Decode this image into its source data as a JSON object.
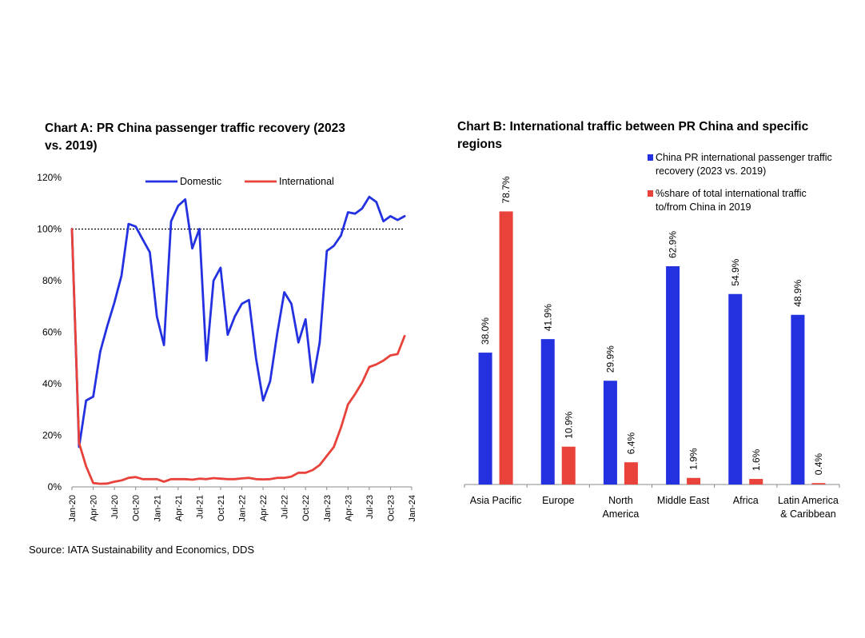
{
  "chart_a_title": "Chart A: PR China passenger traffic recovery (2023 vs. 2019)",
  "chart_b_title": "Chart B: International traffic between PR China and specific regions",
  "source": "Source: IATA Sustainability and Economics, DDS",
  "colors": {
    "blue": "#2431E0",
    "red": "#E8423A"
  },
  "chart_data": [
    {
      "type": "line",
      "title": "Chart A: PR China passenger traffic recovery (2023 vs. 2019)",
      "x": [
        "Jan-20",
        "Feb-20",
        "Mar-20",
        "Apr-20",
        "May-20",
        "Jun-20",
        "Jul-20",
        "Aug-20",
        "Sep-20",
        "Oct-20",
        "Nov-20",
        "Dec-20",
        "Jan-21",
        "Feb-21",
        "Mar-21",
        "Apr-21",
        "May-21",
        "Jun-21",
        "Jul-21",
        "Aug-21",
        "Sep-21",
        "Oct-21",
        "Nov-21",
        "Dec-21",
        "Jan-22",
        "Feb-22",
        "Mar-22",
        "Apr-22",
        "May-22",
        "Jun-22",
        "Jul-22",
        "Aug-22",
        "Sep-22",
        "Oct-22",
        "Nov-22",
        "Dec-22",
        "Jan-23",
        "Feb-23",
        "Mar-23",
        "Apr-23",
        "May-23",
        "Jun-23",
        "Jul-23",
        "Aug-23",
        "Sep-23",
        "Oct-23",
        "Nov-23",
        "Dec-23"
      ],
      "x_tick_labels": [
        "Jan-20",
        "Apr-20",
        "Jul-20",
        "Oct-20",
        "Jan-21",
        "Apr-21",
        "Jul-21",
        "Oct-21",
        "Jan-22",
        "Apr-22",
        "Jul-22",
        "Oct-22",
        "Jan-23",
        "Apr-23",
        "Jul-23",
        "Oct-23",
        "Jan-24"
      ],
      "y_tick_labels": [
        "0%",
        "20%",
        "40%",
        "60%",
        "80%",
        "100%",
        "120%"
      ],
      "ylim": [
        0,
        120
      ],
      "reference_line": 100,
      "legend_position": "top",
      "series": [
        {
          "name": "Domestic",
          "color": "#2431E0",
          "values": [
            100,
            15.5,
            33.5,
            35,
            52.5,
            62.5,
            71.5,
            82,
            102,
            101,
            96,
            91,
            66,
            55,
            103,
            109,
            111.5,
            92.5,
            100,
            49,
            80,
            85,
            59,
            66,
            71,
            72.5,
            50,
            33.5,
            41,
            59.5,
            75.5,
            71,
            56,
            65,
            40.5,
            56,
            91.5,
            93.5,
            97.5,
            106.5,
            106,
            108,
            112.5,
            110.5,
            103,
            105,
            103.5,
            105
          ]
        },
        {
          "name": "International",
          "color": "#E8423A",
          "values": [
            100,
            17,
            8,
            1.5,
            1.2,
            1.3,
            2,
            2.5,
            3.5,
            3.8,
            3,
            3,
            3,
            2,
            3,
            3,
            3,
            2.8,
            3.2,
            3,
            3.4,
            3.2,
            3,
            3,
            3.3,
            3.5,
            3,
            2.9,
            3,
            3.5,
            3.5,
            4,
            5.5,
            5.5,
            6.5,
            8.5,
            12,
            15.5,
            23,
            32,
            36,
            40.5,
            46.5,
            47.5,
            49,
            51,
            51.5,
            58.5
          ]
        }
      ]
    },
    {
      "type": "bar",
      "title": "Chart B: International traffic between PR China and specific regions",
      "categories": [
        "Asia Pacific",
        "Europe",
        "North America",
        "Middle East",
        "Africa",
        "Latin America & Caribbean"
      ],
      "category_lines": [
        [
          "Asia Pacific"
        ],
        [
          "Europe"
        ],
        [
          "North",
          "America"
        ],
        [
          "Middle East"
        ],
        [
          "Africa"
        ],
        [
          "Latin America",
          "& Caribbean"
        ]
      ],
      "ylim": [
        0,
        100
      ],
      "legend_position": "top-right",
      "series": [
        {
          "name": "China PR international passenger traffic recovery (2023 vs. 2019)",
          "name_lines": [
            "China PR international passenger traffic",
            "recovery (2023 vs. 2019)"
          ],
          "color": "#2431E0",
          "values": [
            38.0,
            41.9,
            29.9,
            62.9,
            54.9,
            48.9
          ],
          "labels": [
            "38.0%",
            "41.9%",
            "29.9%",
            "62.9%",
            "54.9%",
            "48.9%"
          ]
        },
        {
          "name": "%share of total international traffic to/from China in 2019",
          "name_lines": [
            "%share of total international traffic",
            "to/from China in 2019"
          ],
          "color": "#E8423A",
          "values": [
            78.7,
            10.9,
            6.4,
            1.9,
            1.6,
            0.4
          ],
          "labels": [
            "78.7%",
            "10.9%",
            "6.4%",
            "1.9%",
            "1.6%",
            "0.4%"
          ]
        }
      ]
    }
  ]
}
